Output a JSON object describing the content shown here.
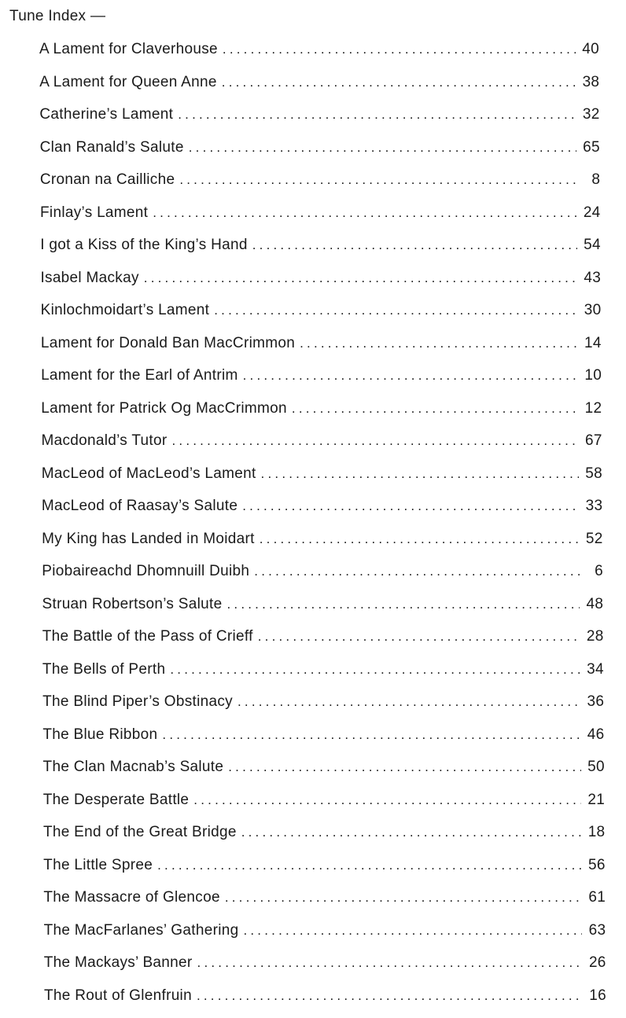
{
  "title": "Tune Index —",
  "entries": [
    {
      "name": "A Lament for Claverhouse",
      "page": "40"
    },
    {
      "name": "A Lament for Queen Anne",
      "page": "38"
    },
    {
      "name": "Catherine’s Lament",
      "page": "32"
    },
    {
      "name": "Clan Ranald’s Salute",
      "page": "65"
    },
    {
      "name": "Cronan na Cailliche",
      "page": "8"
    },
    {
      "name": "Finlay’s Lament",
      "page": "24"
    },
    {
      "name": "I got a Kiss of the King’s Hand",
      "page": "54"
    },
    {
      "name": "Isabel Mackay",
      "page": "43"
    },
    {
      "name": "Kinlochmoidart’s Lament",
      "page": "30"
    },
    {
      "name": "Lament for Donald Ban MacCrimmon",
      "page": "14"
    },
    {
      "name": "Lament for the Earl of Antrim",
      "page": "10"
    },
    {
      "name": "Lament for Patrick Og MacCrimmon",
      "page": "12"
    },
    {
      "name": "Macdonald’s Tutor",
      "page": "67"
    },
    {
      "name": "MacLeod of MacLeod’s Lament",
      "page": "58"
    },
    {
      "name": "MacLeod of Raasay’s Salute",
      "page": "33"
    },
    {
      "name": "My King has Landed in Moidart",
      "page": "52"
    },
    {
      "name": "Piobaireachd Dhomnuill Duibh",
      "page": "6"
    },
    {
      "name": "Struan Robertson’s Salute",
      "page": "48"
    },
    {
      "name": "The Battle of the Pass of Crieff",
      "page": "28"
    },
    {
      "name": "The Bells of Perth",
      "page": "34"
    },
    {
      "name": "The Blind Piper’s Obstinacy",
      "page": "36"
    },
    {
      "name": "The Blue Ribbon",
      "page": "46"
    },
    {
      "name": "The Clan Macnab’s Salute",
      "page": "50"
    },
    {
      "name": "The Desperate Battle",
      "page": "21"
    },
    {
      "name": "The End of the Great Bridge",
      "page": "18"
    },
    {
      "name": "The Little Spree",
      "page": "56"
    },
    {
      "name": "The Massacre of Glencoe",
      "page": "61"
    },
    {
      "name": "The MacFarlanes’ Gathering",
      "page": "63"
    },
    {
      "name": "The Mackays’ Banner",
      "page": "26"
    },
    {
      "name": "The Rout of Glenfruin",
      "page": "16"
    }
  ]
}
